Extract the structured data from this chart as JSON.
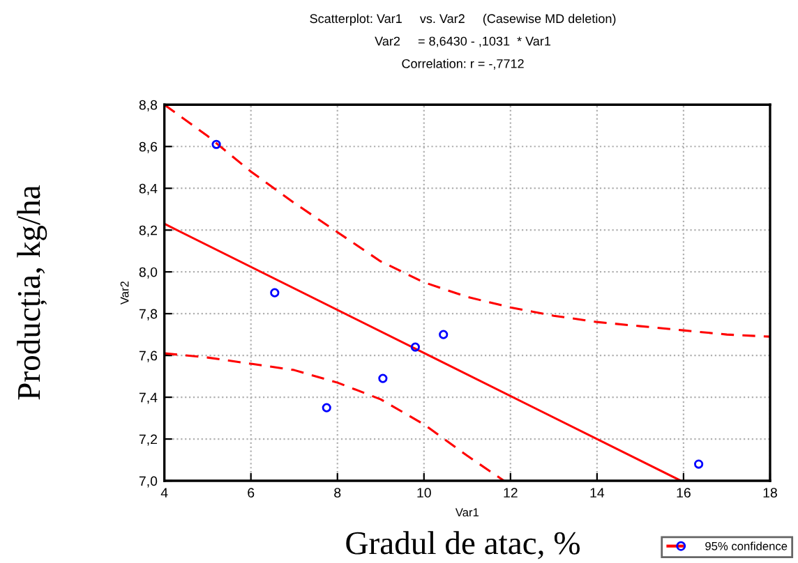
{
  "chart_data": {
    "type": "scatter",
    "title": "Scatterplot: Var1     vs. Var2     (Casewise MD deletion)",
    "subtitle": "Var2     = 8,6430 - ,1031  * Var1\nCorrelation: r = -,7712",
    "xlabel": "Var1",
    "ylabel": "Var2",
    "annotations": [
      "Producția, kg/ha",
      "Gradul de atac, %"
    ],
    "xlim": [
      4,
      18
    ],
    "xticks": [
      4,
      6,
      8,
      10,
      12,
      14,
      16,
      18
    ],
    "ylim": [
      7.0,
      8.8
    ],
    "yticks": [
      {
        "value": 7.0,
        "label": "7,0"
      },
      {
        "value": 7.2,
        "label": "7,2"
      },
      {
        "value": 7.4,
        "label": "7,4"
      },
      {
        "value": 7.6,
        "label": "7,6"
      },
      {
        "value": 7.8,
        "label": "7,8"
      },
      {
        "value": 8.0,
        "label": "8,0"
      },
      {
        "value": 8.2,
        "label": "8,2"
      },
      {
        "value": 8.4,
        "label": "8,4"
      },
      {
        "value": 8.6,
        "label": "8,6"
      },
      {
        "value": 8.8,
        "label": "8,8"
      }
    ],
    "grid": true,
    "legend": "bottom right",
    "series": [
      {
        "color": "#0000ff",
        "marker": "circle",
        "x": [
          5.2,
          6.55,
          7.75,
          9.05,
          9.8,
          10.45,
          16.35
        ],
        "values": [
          8.61,
          7.9,
          7.35,
          7.49,
          7.64,
          7.7,
          7.08
        ]
      },
      {
        "type": "line",
        "color": "#ff0000",
        "line_style": "solid",
        "x": [
          4,
          15.94
        ],
        "values": [
          8.23,
          7.0
        ]
      },
      {
        "type": "line",
        "name": "95% confidence",
        "color": "#ff0000",
        "line_style": "dashed",
        "x": [
          4,
          5,
          6,
          7,
          8,
          9,
          10,
          11,
          12,
          13,
          14,
          15,
          16,
          17,
          18
        ],
        "values": [
          8.8,
          8.65,
          8.48,
          8.33,
          8.19,
          8.05,
          7.95,
          7.88,
          7.83,
          7.79,
          7.76,
          7.74,
          7.72,
          7.7,
          7.69
        ]
      },
      {
        "type": "line",
        "color": "#ff0000",
        "line_style": "dashed",
        "x": [
          4,
          5,
          6,
          7,
          8,
          9,
          10,
          11,
          11.85
        ],
        "values": [
          7.61,
          7.59,
          7.56,
          7.53,
          7.47,
          7.39,
          7.27,
          7.12,
          7.0
        ]
      }
    ]
  }
}
